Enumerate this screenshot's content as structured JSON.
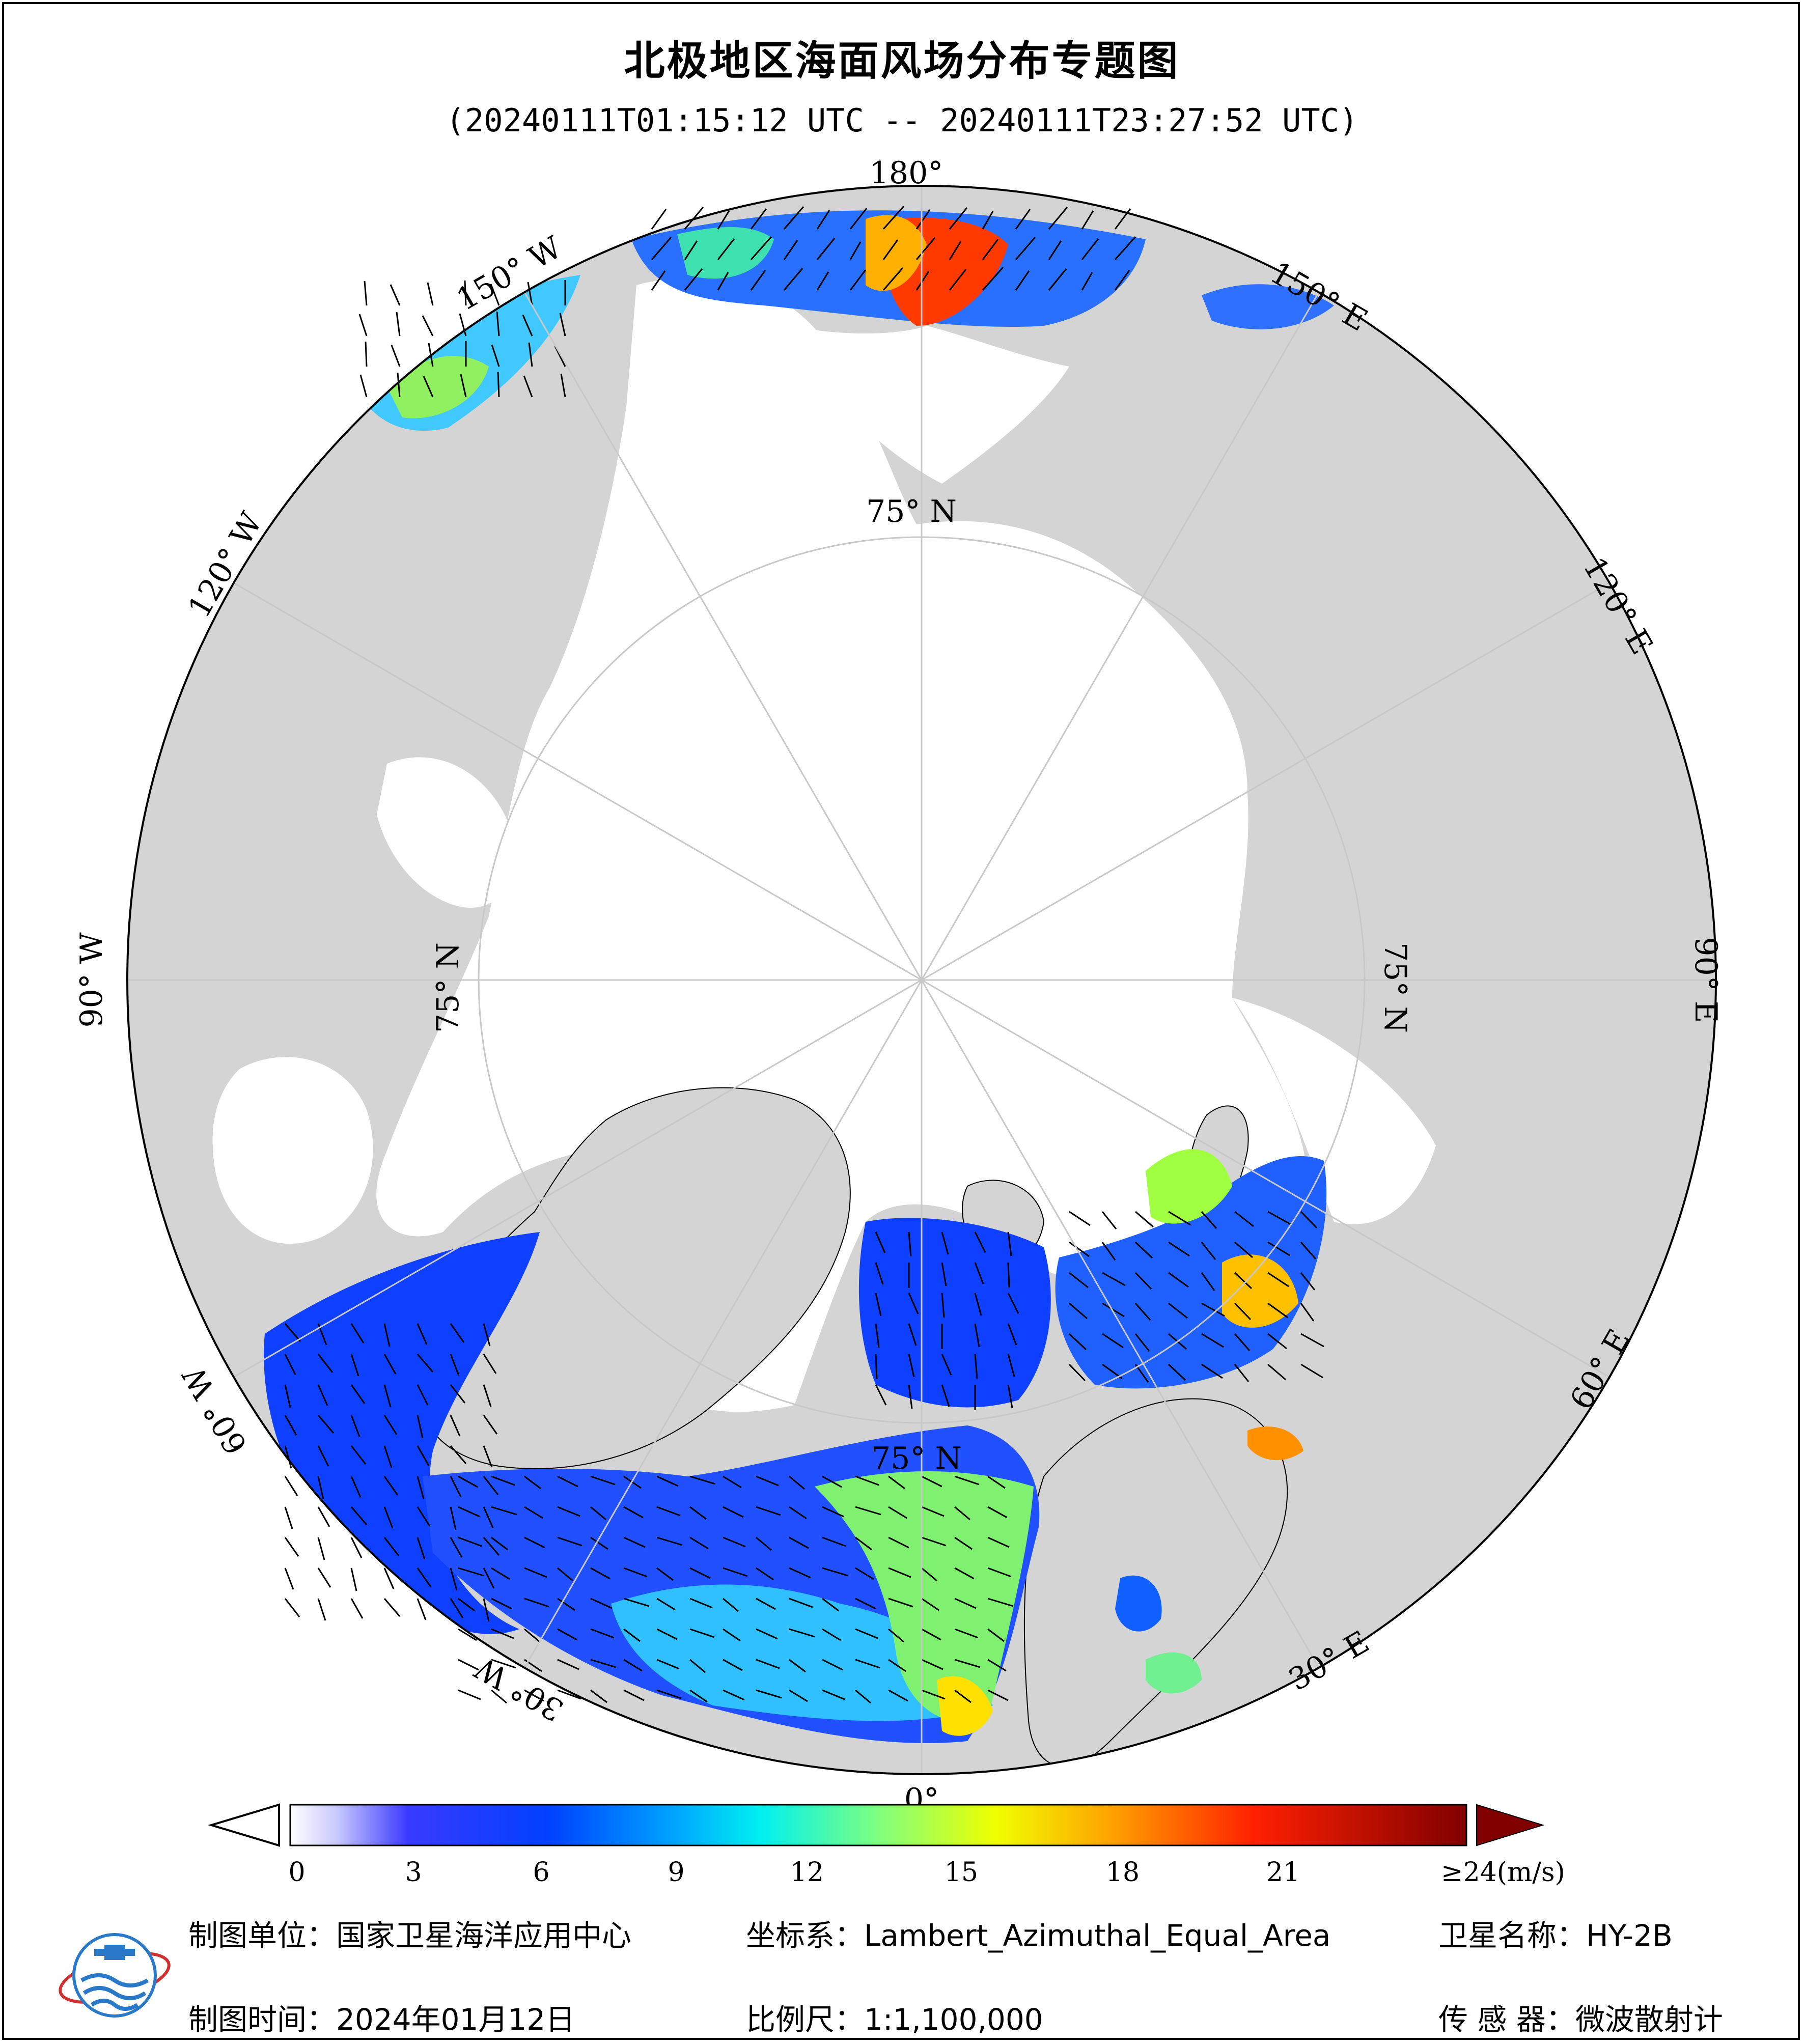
{
  "title": "北极地区海面风场分布专题图",
  "subtitle": "(20240111T01:15:12 UTC -- 20240111T23:27:52 UTC)",
  "map": {
    "projection": "Lambert_Azimuthal_Equal_Area",
    "longitude_labels": [
      "180°",
      "150° E",
      "120° E",
      "90° E",
      "60° E",
      "30° E",
      "0°",
      "30° W",
      "60° W",
      "90° W",
      "120° W",
      "150° W"
    ],
    "latitude_labels": [
      "75° N",
      "75° N",
      "75° N",
      "75° N"
    ],
    "colors": {
      "land": "#d4d4d4",
      "ice_ocean": "#ffffff",
      "graticule": "#c8c8c8"
    }
  },
  "colorbar": {
    "ticks": [
      "0",
      "3",
      "6",
      "9",
      "12",
      "15",
      "18",
      "21",
      "≥24"
    ],
    "unit": "(m/s)",
    "colors": [
      "#ffffff",
      "#d9d9ff",
      "#b0b0ff",
      "#7f7fff",
      "#3030ff",
      "#0000ff",
      "#0060ff",
      "#00a0ff",
      "#00e0ff",
      "#40ffd0",
      "#80ff80",
      "#c0ff40",
      "#ffff00",
      "#ffc000",
      "#ff8000",
      "#ff3000",
      "#e00000",
      "#a00000",
      "#700000"
    ]
  },
  "footer": {
    "unit_label": "制图单位：国家卫星海洋应用中心",
    "coord_label": "坐标系：Lambert_Azimuthal_Equal_Area",
    "satellite_label": "卫星名称：HY-2B",
    "date_label": "制图时间：2024年01月12日",
    "scale_label": "比例尺：1:1,100,000",
    "sensor_label": "传 感 器：微波散射计"
  }
}
